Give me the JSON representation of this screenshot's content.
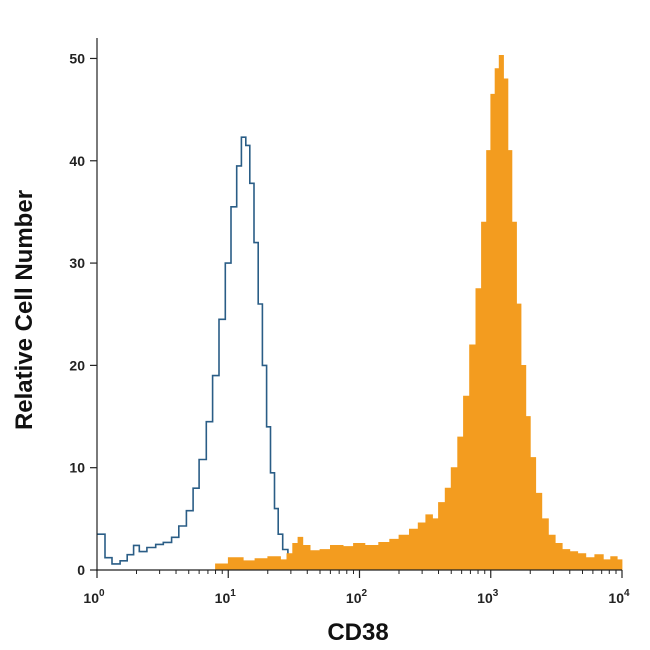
{
  "chart_data": {
    "type": "area",
    "title": "",
    "xlabel": "CD38",
    "ylabel": "Relative Cell Number",
    "xscale": "log",
    "xlim": [
      1,
      10000
    ],
    "ylim": [
      0,
      52
    ],
    "grid": false,
    "legend": "none",
    "x_ticks": [
      {
        "value": 1,
        "base": "10",
        "exp": "0"
      },
      {
        "value": 10,
        "base": "10",
        "exp": "1"
      },
      {
        "value": 100,
        "base": "10",
        "exp": "2"
      },
      {
        "value": 1000,
        "base": "10",
        "exp": "3"
      },
      {
        "value": 10000,
        "base": "10",
        "exp": "4"
      }
    ],
    "y_ticks": [
      {
        "value": 0,
        "label": "0"
      },
      {
        "value": 10,
        "label": "10"
      },
      {
        "value": 20,
        "label": "20"
      },
      {
        "value": 30,
        "label": "30"
      },
      {
        "value": 40,
        "label": "40"
      },
      {
        "value": 50,
        "label": "50"
      }
    ],
    "series": [
      {
        "style": "outline",
        "color": "#2a5d86",
        "points": [
          [
            1.0,
            3.5
          ],
          [
            1.15,
            1.2
          ],
          [
            1.3,
            0.6
          ],
          [
            1.5,
            0.9
          ],
          [
            1.7,
            1.5
          ],
          [
            1.9,
            2.4
          ],
          [
            2.1,
            1.8
          ],
          [
            2.4,
            2.2
          ],
          [
            2.8,
            2.5
          ],
          [
            3.2,
            2.7
          ],
          [
            3.7,
            3.2
          ],
          [
            4.2,
            4.3
          ],
          [
            4.8,
            5.8
          ],
          [
            5.4,
            8.0
          ],
          [
            6.0,
            10.8
          ],
          [
            6.8,
            14.5
          ],
          [
            7.6,
            19.0
          ],
          [
            8.5,
            24.5
          ],
          [
            9.5,
            30.0
          ],
          [
            10.5,
            35.5
          ],
          [
            11.6,
            39.5
          ],
          [
            12.6,
            42.3
          ],
          [
            13.6,
            41.5
          ],
          [
            14.6,
            37.8
          ],
          [
            15.7,
            32.0
          ],
          [
            16.9,
            26.0
          ],
          [
            18.2,
            20.0
          ],
          [
            19.6,
            14.0
          ],
          [
            21.0,
            9.5
          ],
          [
            22.5,
            6.0
          ],
          [
            24.0,
            3.5
          ],
          [
            26.0,
            2.0
          ],
          [
            28.5,
            1.0
          ],
          [
            31.0,
            0.4
          ],
          [
            33.0,
            0.1
          ]
        ]
      },
      {
        "style": "filled",
        "color": "#f39c1f",
        "points": [
          [
            8.0,
            0.6
          ],
          [
            10.0,
            1.2
          ],
          [
            13.0,
            0.9
          ],
          [
            16.0,
            1.1
          ],
          [
            20.0,
            1.3
          ],
          [
            25.0,
            1.0
          ],
          [
            28.0,
            1.6
          ],
          [
            31.0,
            2.6
          ],
          [
            34.0,
            3.2
          ],
          [
            37.0,
            2.4
          ],
          [
            42.0,
            1.9
          ],
          [
            50.0,
            2.0
          ],
          [
            60.0,
            2.4
          ],
          [
            75.0,
            2.3
          ],
          [
            90.0,
            2.6
          ],
          [
            110.0,
            2.4
          ],
          [
            140.0,
            2.7
          ],
          [
            170.0,
            3.0
          ],
          [
            200.0,
            3.4
          ],
          [
            240.0,
            4.0
          ],
          [
            280.0,
            4.6
          ],
          [
            320.0,
            5.4
          ],
          [
            360.0,
            5.0
          ],
          [
            400.0,
            6.6
          ],
          [
            450.0,
            8.0
          ],
          [
            500.0,
            10.0
          ],
          [
            560.0,
            13.0
          ],
          [
            620.0,
            17.0
          ],
          [
            690.0,
            22.0
          ],
          [
            770.0,
            27.5
          ],
          [
            850.0,
            34.0
          ],
          [
            930.0,
            41.0
          ],
          [
            1000.0,
            46.5
          ],
          [
            1080.0,
            49.0
          ],
          [
            1160.0,
            50.3
          ],
          [
            1250.0,
            48.0
          ],
          [
            1350.0,
            41.0
          ],
          [
            1450.0,
            34.0
          ],
          [
            1570.0,
            26.0
          ],
          [
            1700.0,
            20.0
          ],
          [
            1850.0,
            15.0
          ],
          [
            2000.0,
            11.0
          ],
          [
            2200.0,
            7.5
          ],
          [
            2450.0,
            5.0
          ],
          [
            2750.0,
            3.4
          ],
          [
            3100.0,
            2.6
          ],
          [
            3500.0,
            2.0
          ],
          [
            4000.0,
            1.8
          ],
          [
            4600.0,
            1.6
          ],
          [
            5300.0,
            1.2
          ],
          [
            6200.0,
            1.5
          ],
          [
            7200.0,
            1.0
          ],
          [
            8200.0,
            1.3
          ],
          [
            9200.0,
            1.0
          ],
          [
            10000.0,
            0.6
          ]
        ]
      }
    ]
  }
}
